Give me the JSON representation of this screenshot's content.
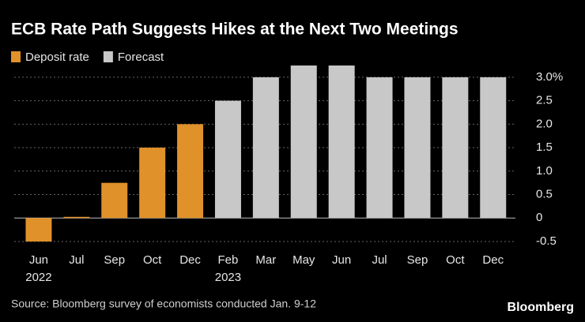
{
  "chart_data": {
    "type": "bar",
    "title": "ECB Rate Path Suggests Hikes at the Next Two Meetings",
    "categories": [
      "Jun\n2022",
      "Jul",
      "Sep",
      "Oct",
      "Dec",
      "Feb\n2023",
      "Mar",
      "May",
      "Jun",
      "Jul",
      "Sep",
      "Oct",
      "Dec"
    ],
    "series": [
      {
        "name": "Deposit rate",
        "color": "#e0912a",
        "values": [
          -0.5,
          0,
          0.75,
          1.5,
          2.0,
          null,
          null,
          null,
          null,
          null,
          null,
          null,
          null
        ]
      },
      {
        "name": "Forecast",
        "color": "#c8c8c8",
        "values": [
          null,
          null,
          null,
          null,
          null,
          2.5,
          3.0,
          3.25,
          3.25,
          3.0,
          3.0,
          3.0,
          3.0
        ]
      }
    ],
    "ylim": [
      -0.5,
      3.25
    ],
    "yticks": [
      -0.5,
      0,
      0.5,
      {
        "value": 1,
        "label": "1.0"
      },
      1.5,
      {
        "value": 2,
        "label": "2.0"
      },
      2.5,
      {
        "value": 3,
        "label": "3.0%"
      }
    ],
    "grid": true,
    "source": "Source: Bloomberg survey of economists conducted Jan. 9-12",
    "brand": "Bloomberg"
  }
}
